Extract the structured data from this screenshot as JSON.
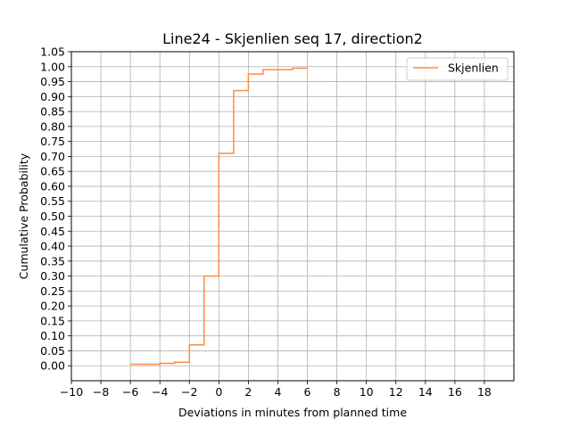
{
  "chart_data": {
    "type": "line",
    "title": "Line24 - Skjenlien seq 17, direction2",
    "xlabel": "Deviations in minutes from planned time",
    "ylabel": "Cumulative Probability",
    "xlim": [
      -10,
      20
    ],
    "ylim": [
      -0.05,
      1.05
    ],
    "x_ticks": [
      -10,
      -8,
      -6,
      -4,
      -2,
      0,
      2,
      4,
      6,
      8,
      10,
      12,
      14,
      16,
      18
    ],
    "x_tick_labels": [
      "−10",
      "−8",
      "−6",
      "−4",
      "−2",
      "0",
      "2",
      "4",
      "6",
      "8",
      "10",
      "12",
      "14",
      "16",
      "18"
    ],
    "y_ticks": [
      0.0,
      0.05,
      0.1,
      0.15,
      0.2,
      0.25,
      0.3,
      0.35,
      0.4,
      0.45,
      0.5,
      0.55,
      0.6,
      0.65,
      0.7,
      0.75,
      0.8,
      0.85,
      0.9,
      0.95,
      1.0,
      1.05
    ],
    "y_tick_labels": [
      "0.00",
      "0.05",
      "0.10",
      "0.15",
      "0.20",
      "0.25",
      "0.30",
      "0.35",
      "0.40",
      "0.45",
      "0.50",
      "0.55",
      "0.60",
      "0.65",
      "0.70",
      "0.75",
      "0.80",
      "0.85",
      "0.90",
      "0.95",
      "1.00",
      "1.05"
    ],
    "grid": true,
    "legend_position": "top-right",
    "series": [
      {
        "name": "Skjenlien",
        "color": "#ff8c42",
        "step": "post",
        "x": [
          -6,
          -5,
          -4,
          -3,
          -2,
          -1,
          0,
          1,
          2,
          3,
          4,
          5,
          6
        ],
        "y": [
          0.005,
          0.005,
          0.008,
          0.012,
          0.07,
          0.3,
          0.71,
          0.92,
          0.975,
          0.99,
          0.99,
          0.995,
          0.995
        ]
      }
    ]
  }
}
